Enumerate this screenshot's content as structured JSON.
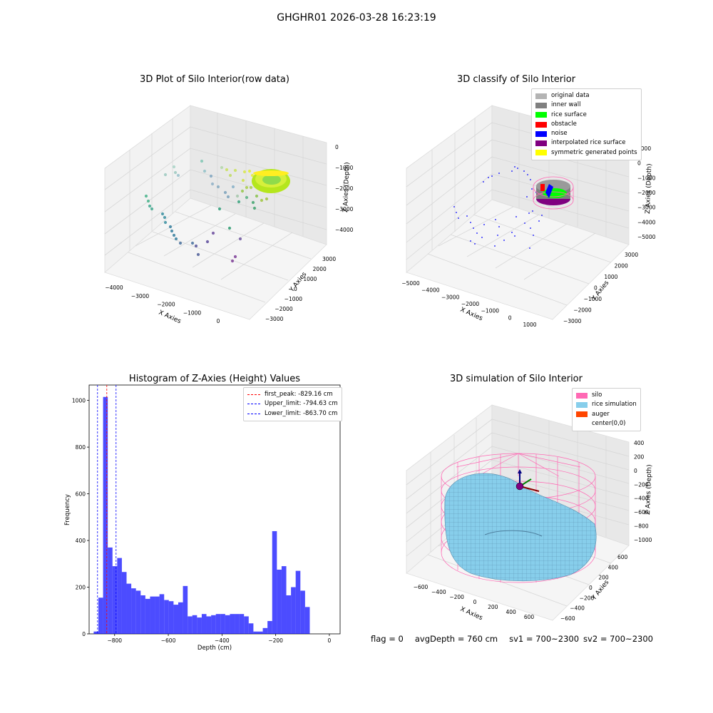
{
  "suptitle": "GHGHR01 2026-03-28 16:23:19",
  "panels": {
    "raw": {
      "title": "3D Plot of Silo Interior(row data)",
      "xlabel": "X Axies",
      "ylabel": "Y Axies",
      "zlabel": "Z Axies (Depth)",
      "xticks": [
        "-4000",
        "-3000",
        "-2000",
        "-1000",
        "0"
      ],
      "yticks": [
        "3000",
        "2000",
        "1000",
        "0",
        "-1000",
        "-2000",
        "-3000"
      ],
      "zticks": [
        "0",
        "-1000",
        "-2000",
        "-3000",
        "-4000"
      ]
    },
    "classify": {
      "title": "3D classify of Silo Interior",
      "xlabel": "X Axies",
      "ylabel": "Y Axies",
      "zlabel": "Z Axies (Depth)",
      "xticks": [
        "-5000",
        "-4000",
        "-3000",
        "-2000",
        "-1000",
        "0",
        "1000"
      ],
      "yticks": [
        "3000",
        "2000",
        "1000",
        "0",
        "-1000",
        "-2000",
        "-3000"
      ],
      "zticks": [
        "1000",
        "0",
        "-1000",
        "-2000",
        "-3000",
        "-4000",
        "-5000"
      ],
      "legend": [
        {
          "label": "original data",
          "color": "#b4b4b4"
        },
        {
          "label": "inner wall",
          "color": "#808080"
        },
        {
          "label": "rice surface",
          "color": "#00ff00"
        },
        {
          "label": "obstacle",
          "color": "#ff0000"
        },
        {
          "label": "noise",
          "color": "#0000ff"
        },
        {
          "label": "interpolated rice surface",
          "color": "#800080"
        },
        {
          "label": "symmetric generated points",
          "color": "#ffff00"
        }
      ]
    },
    "simulation": {
      "title": "3D simulation of Silo Interior",
      "xlabel": "X Axies",
      "ylabel": "Y Axies",
      "zlabel": "Z Axies (Depth)",
      "xticks": [
        "-600",
        "-400",
        "-200",
        "0",
        "200",
        "400",
        "600"
      ],
      "yticks": [
        "600",
        "400",
        "200",
        "0",
        "-200",
        "-400",
        "-600"
      ],
      "zticks": [
        "400",
        "200",
        "0",
        "-200",
        "-400",
        "-600",
        "-800",
        "-1000"
      ],
      "legend": [
        {
          "label": "silo",
          "color": "#ff69b4"
        },
        {
          "label": "rice simulation",
          "color": "#87ceeb"
        },
        {
          "label": "auger",
          "color": "#ff4500"
        },
        {
          "label": "center(0,0)",
          "color": ""
        }
      ]
    }
  },
  "footer": {
    "flag": "flag = 0",
    "avg": "avgDepth = 760 cm",
    "sv1": "sv1 = 700~2300",
    "sv2": "sv2 = 700~2300"
  },
  "chart_data": [
    {
      "type": "scatter",
      "title": "3D Plot of Silo Interior(row data)",
      "xlabel": "X Axies",
      "ylabel": "Y Axies",
      "zlabel": "Z Axies (Depth)",
      "xlim": [
        -4300,
        500
      ],
      "ylim": [
        -3300,
        3300
      ],
      "zlim": [
        -4500,
        300
      ]
    },
    {
      "type": "scatter",
      "title": "3D classify of Silo Interior",
      "xlabel": "X Axies",
      "ylabel": "Y Axies",
      "zlabel": "Z Axies (Depth)",
      "series": [
        {
          "name": "original data"
        },
        {
          "name": "inner wall"
        },
        {
          "name": "rice surface"
        },
        {
          "name": "obstacle"
        },
        {
          "name": "noise"
        },
        {
          "name": "interpolated rice surface"
        },
        {
          "name": "symmetric generated points"
        }
      ]
    },
    {
      "type": "bar",
      "title": "Histogram of Z-Axies (Height) Values",
      "xlabel": "Depth (cm)",
      "ylabel": "Frequency",
      "xlim": [
        -895,
        40
      ],
      "ylim": [
        0,
        1066
      ],
      "xticks": [
        -800,
        -600,
        -400,
        -200,
        0
      ],
      "yticks": [
        0,
        200,
        400,
        600,
        800,
        1000
      ],
      "bin_start": -878,
      "bin_width": 17.5,
      "values": [
        10,
        155,
        1015,
        370,
        290,
        325,
        265,
        215,
        195,
        185,
        165,
        150,
        160,
        160,
        170,
        145,
        140,
        125,
        135,
        205,
        75,
        80,
        70,
        85,
        75,
        80,
        85,
        85,
        80,
        85,
        85,
        85,
        75,
        45,
        10,
        10,
        25,
        55,
        440,
        275,
        290,
        165,
        200,
        270,
        185,
        115
      ],
      "color": "#0000ff",
      "vlines": [
        {
          "label": "first_peak: -829.16 cm",
          "x": -829.16,
          "color": "#ff0000"
        },
        {
          "label": "Upper_limit: -794.63 cm",
          "x": -794.63,
          "color": "#0000ff"
        },
        {
          "label": "Lower_limit: -863.70 cm",
          "x": -863.7,
          "color": "#0000ff"
        }
      ]
    },
    {
      "type": "scatter",
      "title": "3D simulation of Silo Interior",
      "xlabel": "X Axies",
      "ylabel": "Y Axies",
      "zlabel": "Z Axies (Depth)",
      "series": [
        {
          "name": "silo"
        },
        {
          "name": "rice simulation"
        },
        {
          "name": "auger"
        },
        {
          "name": "center(0,0)"
        }
      ]
    }
  ]
}
